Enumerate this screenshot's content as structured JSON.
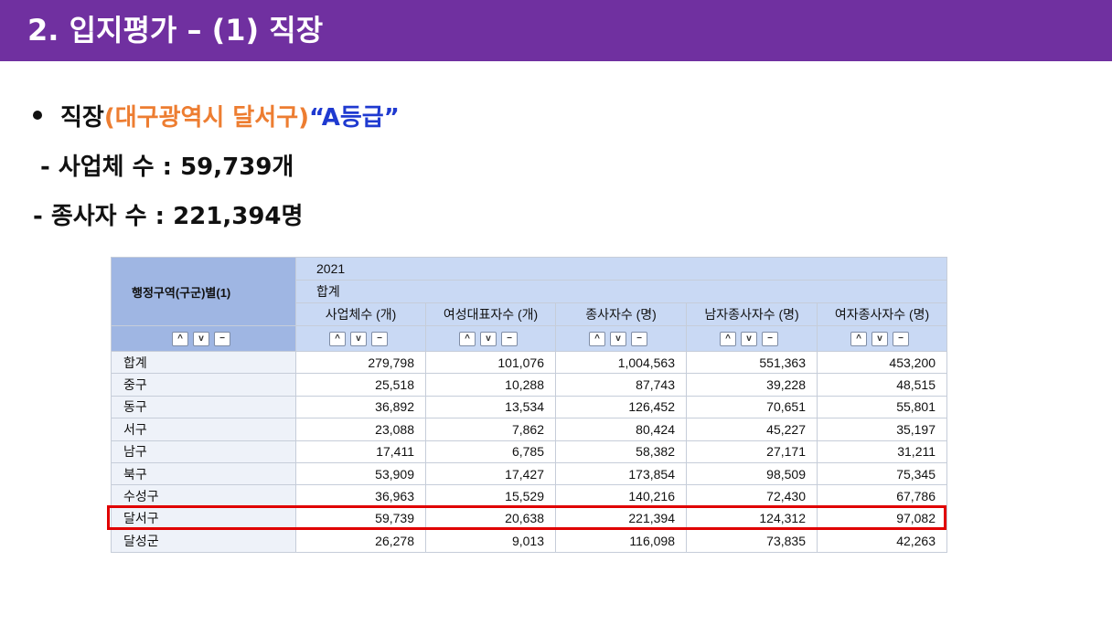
{
  "title": "2. 입지평가 – (1) 직장",
  "bullet": {
    "prefix": "직장 ",
    "region": "(대구광역시 달서구)",
    "grade": " “A등급”"
  },
  "lines": {
    "business_count": " - 사업체 수 : 59,739개",
    "employee_count": "-  종사자 수 : 221,394명"
  },
  "colors": {
    "title_bar": "#7030a0",
    "region": "#ed7d31",
    "grade": "#1f3ad0",
    "highlight": "#e00000"
  },
  "table": {
    "row_header": "행정구역(구군)별(1)",
    "year": "2021",
    "total_label": "합계",
    "columns": [
      "사업체수 (개)",
      "여성대표자수 (개)",
      "종사자수 (명)",
      "남자종사자수 (명)",
      "여자종사자수 (명)"
    ],
    "controls": [
      "^",
      "v",
      "−"
    ],
    "rows": [
      {
        "name": "합계",
        "values": [
          "279,798",
          "101,076",
          "1,004,563",
          "551,363",
          "453,200"
        ]
      },
      {
        "name": "중구",
        "values": [
          "25,518",
          "10,288",
          "87,743",
          "39,228",
          "48,515"
        ]
      },
      {
        "name": "동구",
        "values": [
          "36,892",
          "13,534",
          "126,452",
          "70,651",
          "55,801"
        ]
      },
      {
        "name": "서구",
        "values": [
          "23,088",
          "7,862",
          "80,424",
          "45,227",
          "35,197"
        ]
      },
      {
        "name": "남구",
        "values": [
          "17,411",
          "6,785",
          "58,382",
          "27,171",
          "31,211"
        ]
      },
      {
        "name": "북구",
        "values": [
          "53,909",
          "17,427",
          "173,854",
          "98,509",
          "75,345"
        ]
      },
      {
        "name": "수성구",
        "values": [
          "36,963",
          "15,529",
          "140,216",
          "72,430",
          "67,786"
        ]
      },
      {
        "name": "달서구",
        "values": [
          "59,739",
          "20,638",
          "221,394",
          "124,312",
          "97,082"
        ]
      },
      {
        "name": "달성군",
        "values": [
          "26,278",
          "9,013",
          "116,098",
          "73,835",
          "42,263"
        ]
      }
    ],
    "highlighted_row": "달서구"
  }
}
